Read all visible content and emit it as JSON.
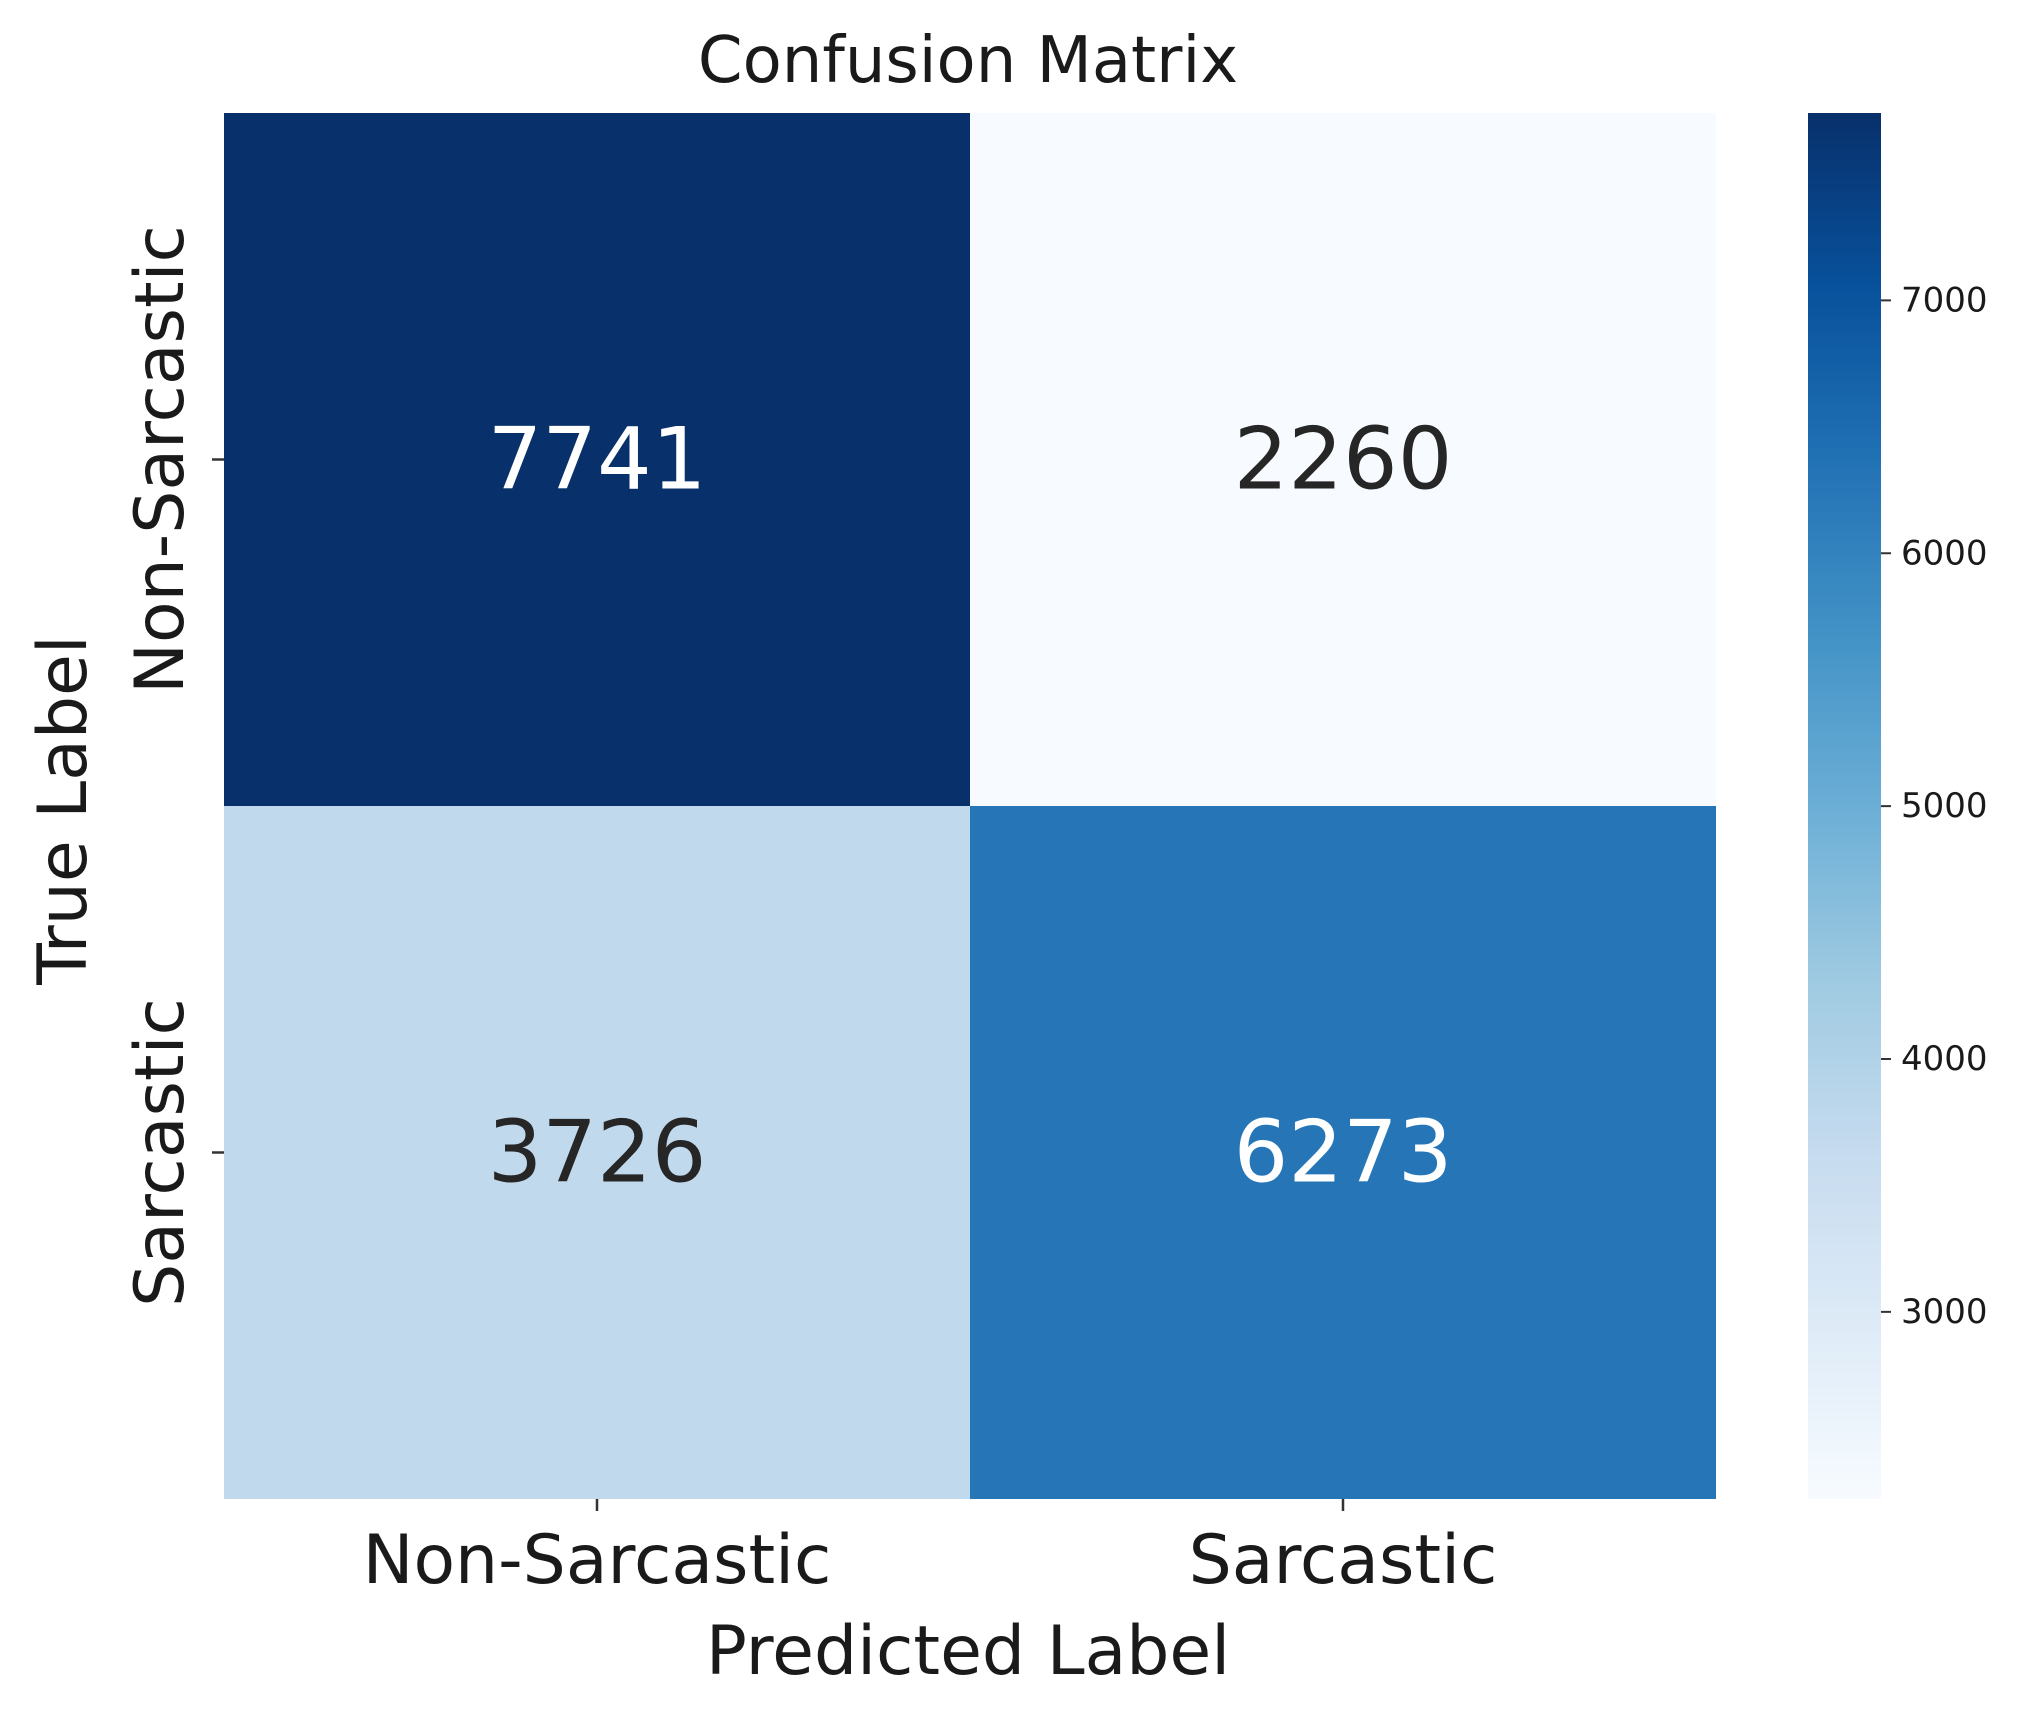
{
  "chart_data": {
    "type": "heatmap",
    "title": "Confusion Matrix",
    "xlabel": "Predicted Label",
    "ylabel": "True Label",
    "x_categories": [
      "Non-Sarcastic",
      "Sarcastic"
    ],
    "y_categories": [
      "Non-Sarcastic",
      "Sarcastic"
    ],
    "values": [
      [
        7741,
        2260
      ],
      [
        3726,
        6273
      ]
    ],
    "cell_labels": [
      [
        "7741",
        "2260"
      ],
      [
        "3726",
        "6273"
      ]
    ],
    "colormap": "Blues",
    "colorbar": {
      "min": 2260,
      "max": 7741,
      "ticks": [
        3000,
        4000,
        5000,
        6000,
        7000
      ],
      "tick_labels": [
        "3000",
        "4000",
        "5000",
        "6000",
        "7000"
      ]
    }
  }
}
